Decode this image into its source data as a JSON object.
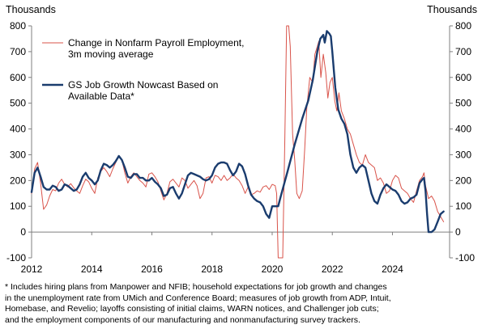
{
  "chart_data": {
    "type": "line",
    "ylabel_left": "Thousands",
    "ylabel_right": "Thousands",
    "ylim": [
      -100,
      800
    ],
    "y_ticks": [
      -100,
      0,
      100,
      200,
      300,
      400,
      500,
      600,
      700,
      800
    ],
    "xlim": [
      2012,
      2025.9
    ],
    "x_ticks": [
      2012,
      2014,
      2016,
      2018,
      2020,
      2022,
      2024
    ],
    "grid": false,
    "legend_position": "top-left",
    "series": [
      {
        "name": "Change in Nonfarm Payroll Employment, 3m moving average",
        "color": "#d9534a",
        "points": [
          [
            2012.0,
            150
          ],
          [
            2012.1,
            245
          ],
          [
            2012.2,
            270
          ],
          [
            2012.3,
            190
          ],
          [
            2012.4,
            88
          ],
          [
            2012.5,
            105
          ],
          [
            2012.6,
            140
          ],
          [
            2012.7,
            165
          ],
          [
            2012.8,
            160
          ],
          [
            2012.9,
            190
          ],
          [
            2013.0,
            205
          ],
          [
            2013.1,
            185
          ],
          [
            2013.2,
            175
          ],
          [
            2013.3,
            188
          ],
          [
            2013.4,
            172
          ],
          [
            2013.5,
            160
          ],
          [
            2013.6,
            150
          ],
          [
            2013.7,
            180
          ],
          [
            2013.8,
            205
          ],
          [
            2013.9,
            195
          ],
          [
            2014.0,
            170
          ],
          [
            2014.1,
            150
          ],
          [
            2014.2,
            210
          ],
          [
            2014.3,
            235
          ],
          [
            2014.4,
            250
          ],
          [
            2014.5,
            235
          ],
          [
            2014.6,
            215
          ],
          [
            2014.7,
            245
          ],
          [
            2014.8,
            270
          ],
          [
            2014.9,
            295
          ],
          [
            2015.0,
            280
          ],
          [
            2015.1,
            230
          ],
          [
            2015.2,
            190
          ],
          [
            2015.3,
            215
          ],
          [
            2015.4,
            230
          ],
          [
            2015.5,
            215
          ],
          [
            2015.6,
            200
          ],
          [
            2015.7,
            190
          ],
          [
            2015.8,
            175
          ],
          [
            2015.9,
            225
          ],
          [
            2016.0,
            230
          ],
          [
            2016.1,
            215
          ],
          [
            2016.2,
            195
          ],
          [
            2016.3,
            160
          ],
          [
            2016.4,
            125
          ],
          [
            2016.5,
            150
          ],
          [
            2016.6,
            195
          ],
          [
            2016.7,
            205
          ],
          [
            2016.8,
            190
          ],
          [
            2016.9,
            175
          ],
          [
            2017.0,
            210
          ],
          [
            2017.1,
            200
          ],
          [
            2017.2,
            170
          ],
          [
            2017.3,
            185
          ],
          [
            2017.4,
            200
          ],
          [
            2017.5,
            180
          ],
          [
            2017.6,
            130
          ],
          [
            2017.7,
            150
          ],
          [
            2017.8,
            210
          ],
          [
            2017.9,
            215
          ],
          [
            2018.0,
            190
          ],
          [
            2018.1,
            220
          ],
          [
            2018.2,
            215
          ],
          [
            2018.3,
            200
          ],
          [
            2018.4,
            220
          ],
          [
            2018.5,
            200
          ],
          [
            2018.6,
            210
          ],
          [
            2018.7,
            225
          ],
          [
            2018.8,
            210
          ],
          [
            2018.9,
            200
          ],
          [
            2019.0,
            180
          ],
          [
            2019.1,
            150
          ],
          [
            2019.2,
            175
          ],
          [
            2019.3,
            145
          ],
          [
            2019.4,
            150
          ],
          [
            2019.5,
            160
          ],
          [
            2019.6,
            155
          ],
          [
            2019.7,
            175
          ],
          [
            2019.8,
            180
          ],
          [
            2019.9,
            165
          ],
          [
            2020.0,
            185
          ],
          [
            2020.1,
            180
          ],
          [
            2020.15,
            150
          ],
          [
            2020.2,
            -100
          ],
          [
            2020.28,
            -100
          ],
          [
            2020.35,
            -100
          ],
          [
            2020.42,
            360
          ],
          [
            2020.48,
            800
          ],
          [
            2020.55,
            800
          ],
          [
            2020.6,
            720
          ],
          [
            2020.68,
            380
          ],
          [
            2020.75,
            280
          ],
          [
            2020.82,
            150
          ],
          [
            2020.9,
            130
          ],
          [
            2021.0,
            160
          ],
          [
            2021.08,
            320
          ],
          [
            2021.15,
            480
          ],
          [
            2021.25,
            600
          ],
          [
            2021.35,
            580
          ],
          [
            2021.42,
            690
          ],
          [
            2021.5,
            720
          ],
          [
            2021.55,
            740
          ],
          [
            2021.62,
            600
          ],
          [
            2021.7,
            690
          ],
          [
            2021.78,
            620
          ],
          [
            2021.85,
            520
          ],
          [
            2021.92,
            580
          ],
          [
            2022.0,
            600
          ],
          [
            2022.08,
            510
          ],
          [
            2022.15,
            470
          ],
          [
            2022.22,
            540
          ],
          [
            2022.3,
            470
          ],
          [
            2022.4,
            440
          ],
          [
            2022.5,
            400
          ],
          [
            2022.6,
            380
          ],
          [
            2022.7,
            340
          ],
          [
            2022.8,
            300
          ],
          [
            2022.9,
            270
          ],
          [
            2023.0,
            260
          ],
          [
            2023.1,
            300
          ],
          [
            2023.2,
            270
          ],
          [
            2023.3,
            260
          ],
          [
            2023.4,
            250
          ],
          [
            2023.5,
            200
          ],
          [
            2023.6,
            210
          ],
          [
            2023.7,
            190
          ],
          [
            2023.8,
            150
          ],
          [
            2023.9,
            160
          ],
          [
            2024.0,
            200
          ],
          [
            2024.1,
            220
          ],
          [
            2024.2,
            210
          ],
          [
            2024.3,
            170
          ],
          [
            2024.4,
            160
          ],
          [
            2024.5,
            150
          ],
          [
            2024.6,
            130
          ],
          [
            2024.7,
            115
          ],
          [
            2024.8,
            160
          ],
          [
            2024.9,
            200
          ],
          [
            2025.0,
            215
          ],
          [
            2025.05,
            230
          ],
          [
            2025.1,
            180
          ],
          [
            2025.2,
            130
          ],
          [
            2025.3,
            140
          ],
          [
            2025.4,
            120
          ],
          [
            2025.5,
            80
          ],
          [
            2025.6,
            60
          ],
          [
            2025.7,
            40
          ]
        ]
      },
      {
        "name": "GS Job Growth Nowcast Based on Available Data*",
        "color": "#1a3c6e",
        "points": [
          [
            2012.0,
            155
          ],
          [
            2012.1,
            230
          ],
          [
            2012.2,
            250
          ],
          [
            2012.3,
            215
          ],
          [
            2012.4,
            175
          ],
          [
            2012.5,
            165
          ],
          [
            2012.6,
            165
          ],
          [
            2012.7,
            180
          ],
          [
            2012.8,
            175
          ],
          [
            2012.9,
            160
          ],
          [
            2013.0,
            165
          ],
          [
            2013.1,
            185
          ],
          [
            2013.2,
            180
          ],
          [
            2013.3,
            170
          ],
          [
            2013.4,
            160
          ],
          [
            2013.5,
            165
          ],
          [
            2013.6,
            185
          ],
          [
            2013.7,
            215
          ],
          [
            2013.8,
            230
          ],
          [
            2013.9,
            210
          ],
          [
            2014.0,
            200
          ],
          [
            2014.1,
            185
          ],
          [
            2014.2,
            200
          ],
          [
            2014.3,
            240
          ],
          [
            2014.4,
            265
          ],
          [
            2014.5,
            260
          ],
          [
            2014.6,
            250
          ],
          [
            2014.7,
            260
          ],
          [
            2014.8,
            275
          ],
          [
            2014.9,
            295
          ],
          [
            2015.0,
            280
          ],
          [
            2015.1,
            250
          ],
          [
            2015.2,
            215
          ],
          [
            2015.3,
            210
          ],
          [
            2015.4,
            225
          ],
          [
            2015.5,
            225
          ],
          [
            2015.6,
            210
          ],
          [
            2015.7,
            210
          ],
          [
            2015.8,
            200
          ],
          [
            2015.9,
            200
          ],
          [
            2016.0,
            210
          ],
          [
            2016.1,
            195
          ],
          [
            2016.2,
            185
          ],
          [
            2016.3,
            170
          ],
          [
            2016.4,
            140
          ],
          [
            2016.5,
            145
          ],
          [
            2016.6,
            170
          ],
          [
            2016.7,
            175
          ],
          [
            2016.8,
            150
          ],
          [
            2016.9,
            130
          ],
          [
            2017.0,
            150
          ],
          [
            2017.1,
            185
          ],
          [
            2017.2,
            220
          ],
          [
            2017.3,
            230
          ],
          [
            2017.4,
            225
          ],
          [
            2017.5,
            220
          ],
          [
            2017.6,
            215
          ],
          [
            2017.7,
            205
          ],
          [
            2017.8,
            200
          ],
          [
            2017.9,
            205
          ],
          [
            2018.0,
            220
          ],
          [
            2018.1,
            250
          ],
          [
            2018.2,
            265
          ],
          [
            2018.3,
            270
          ],
          [
            2018.4,
            270
          ],
          [
            2018.5,
            265
          ],
          [
            2018.6,
            240
          ],
          [
            2018.7,
            220
          ],
          [
            2018.8,
            235
          ],
          [
            2018.9,
            265
          ],
          [
            2019.0,
            255
          ],
          [
            2019.1,
            225
          ],
          [
            2019.2,
            180
          ],
          [
            2019.3,
            145
          ],
          [
            2019.4,
            130
          ],
          [
            2019.5,
            120
          ],
          [
            2019.6,
            115
          ],
          [
            2019.7,
            100
          ],
          [
            2019.8,
            70
          ],
          [
            2019.9,
            55
          ],
          [
            2020.0,
            100
          ],
          [
            2020.1,
            100
          ],
          [
            2020.2,
            100
          ],
          [
            2020.3,
            145
          ],
          [
            2020.5,
            230
          ],
          [
            2020.75,
            340
          ],
          [
            2021.0,
            440
          ],
          [
            2021.2,
            510
          ],
          [
            2021.35,
            590
          ],
          [
            2021.5,
            700
          ],
          [
            2021.6,
            750
          ],
          [
            2021.7,
            765
          ],
          [
            2021.75,
            735
          ],
          [
            2021.82,
            780
          ],
          [
            2021.9,
            770
          ],
          [
            2021.95,
            760
          ],
          [
            2022.0,
            700
          ],
          [
            2022.1,
            560
          ],
          [
            2022.2,
            475
          ],
          [
            2022.3,
            440
          ],
          [
            2022.4,
            420
          ],
          [
            2022.5,
            380
          ],
          [
            2022.6,
            300
          ],
          [
            2022.7,
            250
          ],
          [
            2022.8,
            230
          ],
          [
            2022.9,
            250
          ],
          [
            2023.0,
            260
          ],
          [
            2023.1,
            250
          ],
          [
            2023.2,
            200
          ],
          [
            2023.3,
            150
          ],
          [
            2023.4,
            120
          ],
          [
            2023.5,
            110
          ],
          [
            2023.6,
            145
          ],
          [
            2023.7,
            170
          ],
          [
            2023.8,
            185
          ],
          [
            2023.9,
            175
          ],
          [
            2024.0,
            165
          ],
          [
            2024.1,
            160
          ],
          [
            2024.2,
            145
          ],
          [
            2024.3,
            120
          ],
          [
            2024.4,
            110
          ],
          [
            2024.5,
            115
          ],
          [
            2024.6,
            130
          ],
          [
            2024.7,
            135
          ],
          [
            2024.8,
            145
          ],
          [
            2024.9,
            190
          ],
          [
            2025.0,
            205
          ],
          [
            2025.05,
            210
          ],
          [
            2025.1,
            160
          ],
          [
            2025.15,
            70
          ],
          [
            2025.2,
            0
          ],
          [
            2025.3,
            0
          ],
          [
            2025.4,
            10
          ],
          [
            2025.5,
            40
          ],
          [
            2025.6,
            70
          ],
          [
            2025.7,
            80
          ]
        ]
      }
    ]
  },
  "footnote": [
    "* Includes hiring plans from Manpower and NFIB;  household expectations for job growth and changes",
    "in the unemployment  rate from UMich  and Conference Board; measures of job growth from ADP, Intuit,",
    "Homebase, and Revelio; layoffs consisting of initial claims, WARN notices, and Challenger  job cuts;",
    "and the employment  components of our manufacturing and nonmanufacturing  survey trackers."
  ]
}
